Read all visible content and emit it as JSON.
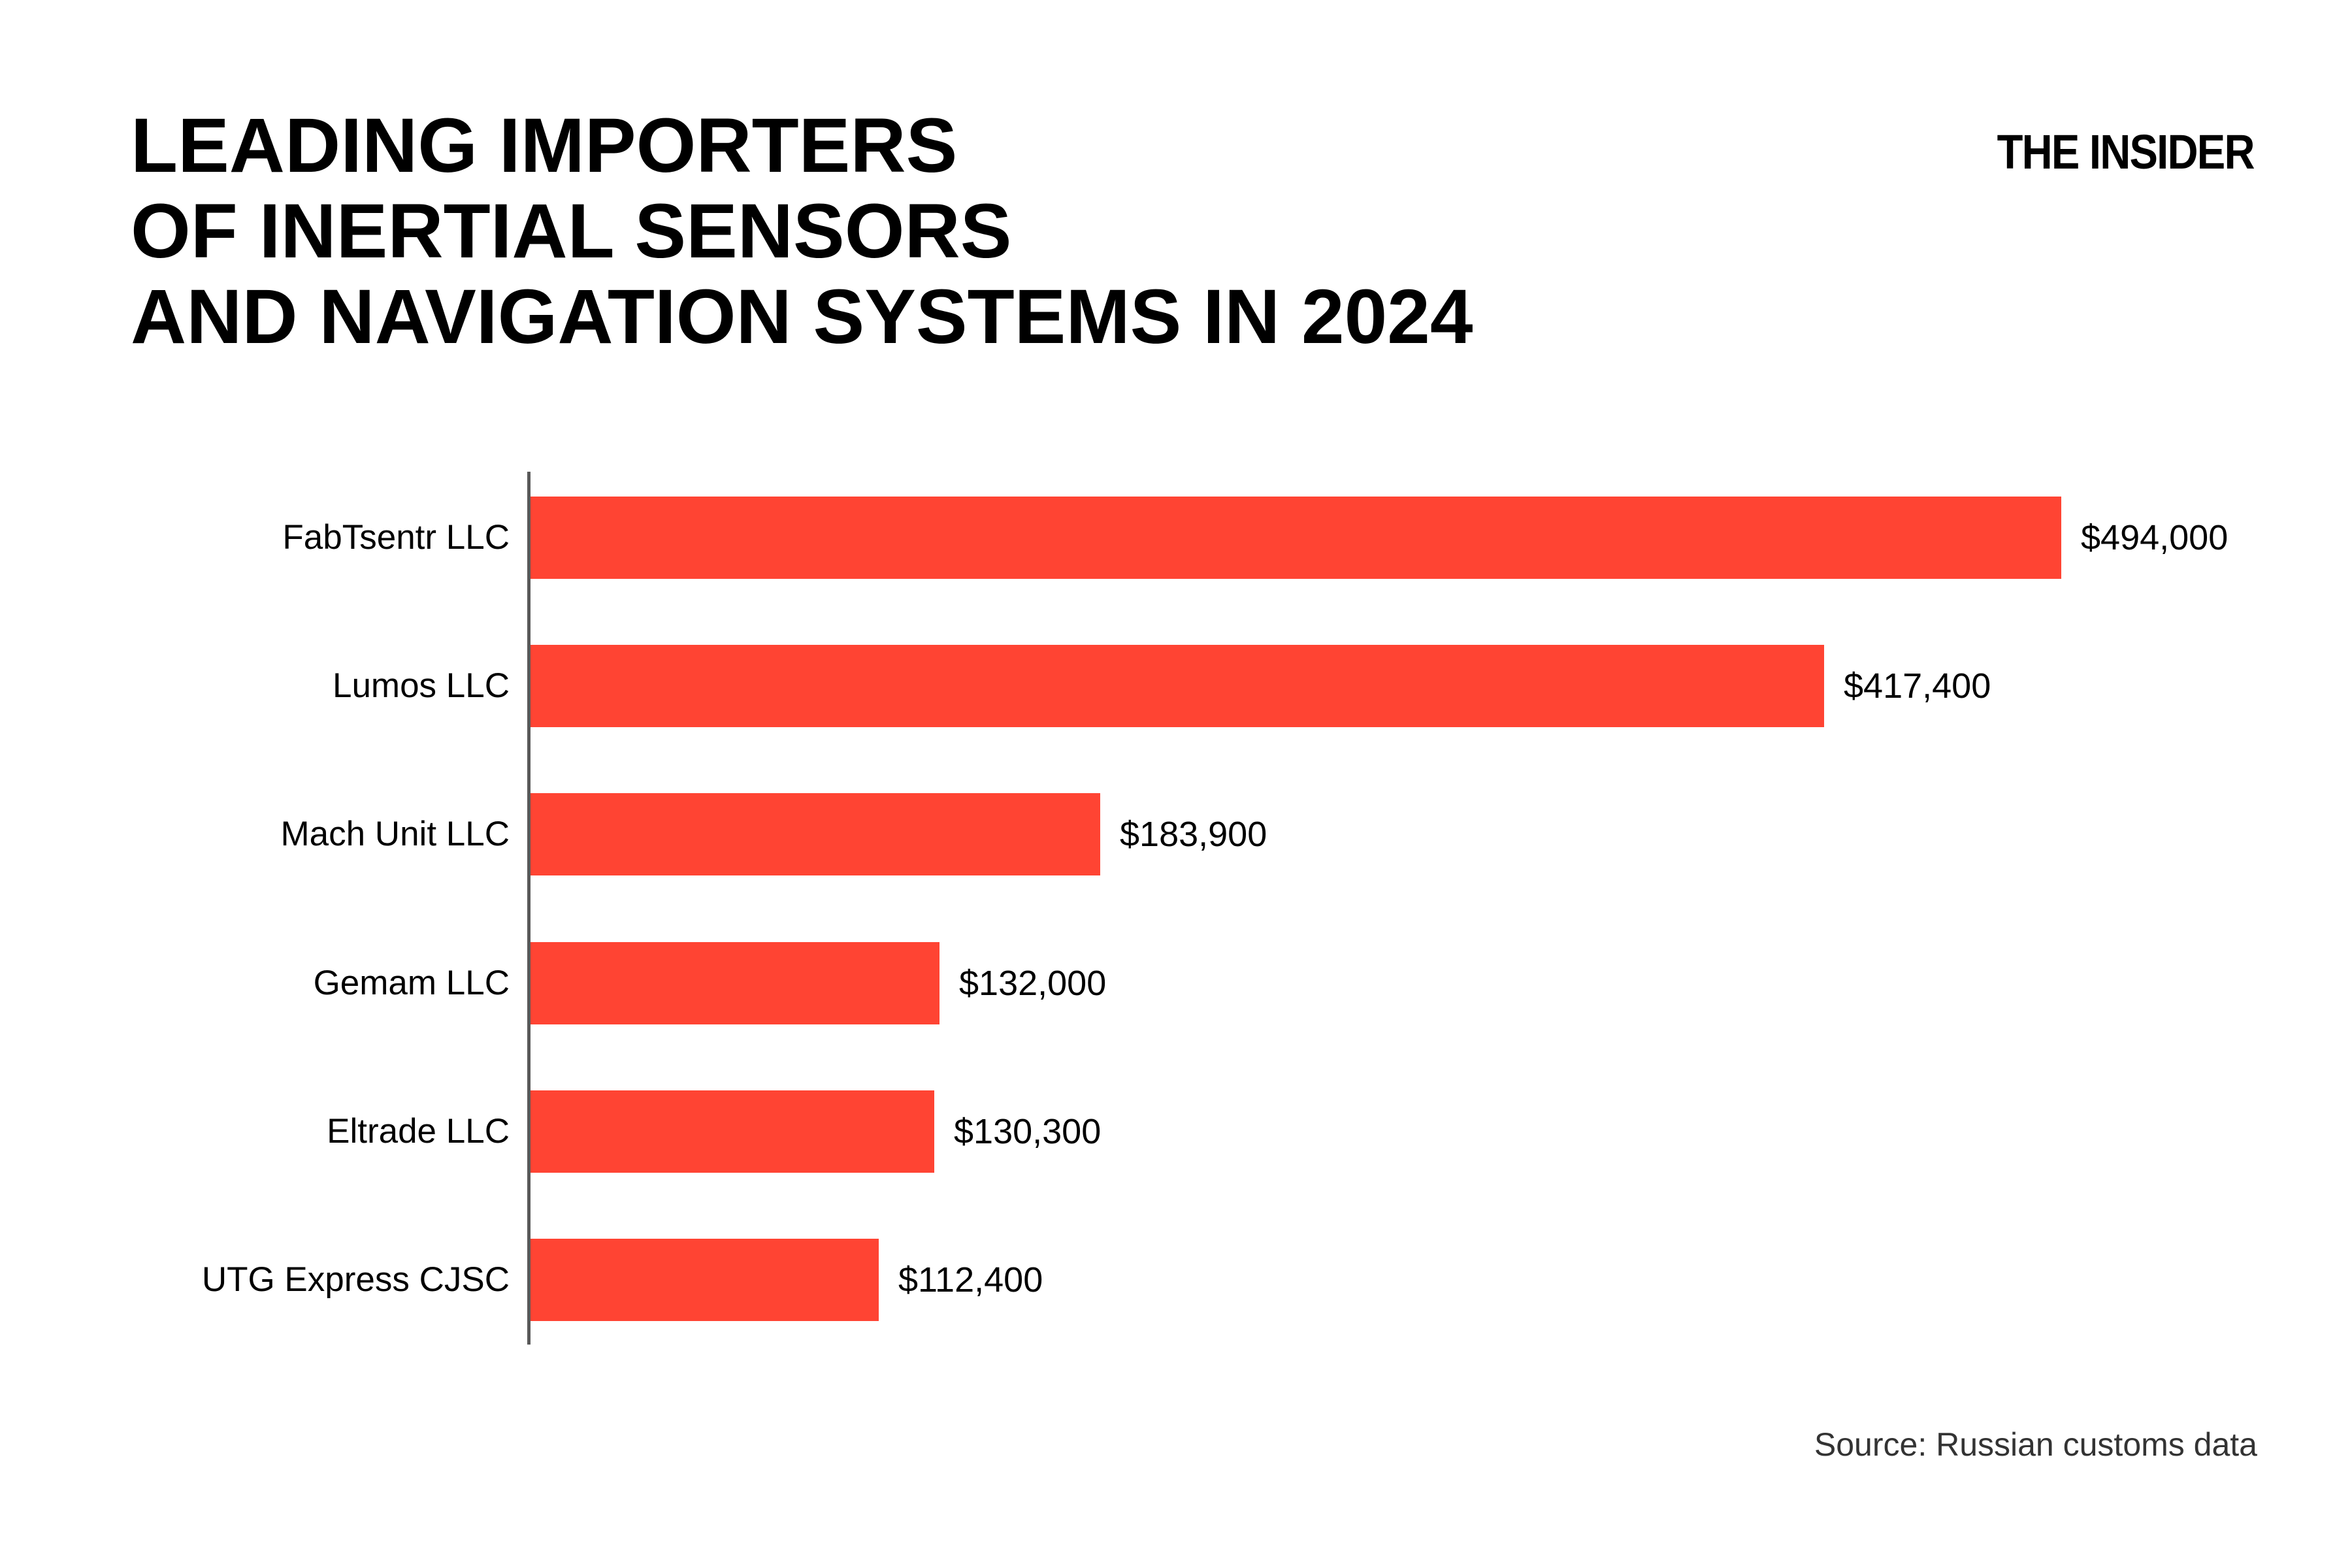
{
  "header": {
    "title_lines": [
      "LEADING IMPORTERS",
      "OF INERTIAL SENSORS",
      "AND NAVIGATION SYSTEMS IN 2024"
    ],
    "brand": "THE INSIDER"
  },
  "chart_data": {
    "type": "bar",
    "orientation": "horizontal",
    "title": "LEADING IMPORTERS OF INERTIAL SENSORS AND NAVIGATION SYSTEMS IN 2024",
    "categories": [
      "FabTsentr LLC",
      "Lumos LLC",
      "Mach Unit LLC",
      "Gemam LLC",
      "Eltrade LLC",
      "UTG Express CJSC"
    ],
    "values": [
      494000,
      417400,
      183900,
      132000,
      130300,
      112400
    ],
    "value_labels": [
      "$494,000",
      "$417,400",
      "$183,900",
      "$132,000",
      "$130,300",
      "$112,400"
    ],
    "xlabel": "",
    "ylabel": "",
    "xlim": [
      0,
      494000
    ],
    "grid": false,
    "legend": false,
    "bar_color": "#FF4433"
  },
  "footer": {
    "source": "Source: Russian customs data"
  },
  "colors": {
    "bar": "#FF4433",
    "background": "#FFFFFF",
    "text": "#000000",
    "source_text": "#333333",
    "axis_line": "#595959"
  }
}
